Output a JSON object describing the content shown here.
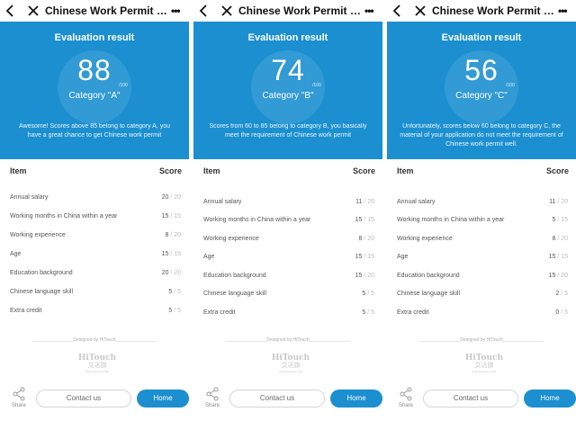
{
  "colors": {
    "accent": "#1b8fd0",
    "background": "#ffffff",
    "text": "#333333"
  },
  "panels": [
    {
      "topbar": {
        "title": "Chinese Work Permit Scor...",
        "back_icon": "chevron-left-icon",
        "close_icon": "close-icon",
        "more_icon": "more-dots-icon",
        "more_glyph": "•••"
      },
      "hero": {
        "title": "Evaluation result",
        "score": "88",
        "out_of": "/100",
        "category": "Category \"A\"",
        "message": "Awesome! Scores above 85 belong to category A, you have a great chance to get Chinese work permit"
      },
      "table": {
        "header_item": "Item",
        "header_score": "Score",
        "rows": [
          {
            "label": "Annual salary",
            "score": "20",
            "max": "/ 20"
          },
          {
            "label": "Working months in China within a year",
            "score": "15",
            "max": "/ 15"
          },
          {
            "label": "Working experience",
            "score": "8",
            "max": "/ 20"
          },
          {
            "label": "Age",
            "score": "15",
            "max": "/ 15"
          },
          {
            "label": "Education background",
            "score": "20",
            "max": "/ 20"
          },
          {
            "label": "Chinese language skill",
            "score": "5",
            "max": "/ 5"
          },
          {
            "label": "Extra credit",
            "score": "5",
            "max": "/ 5"
          }
        ]
      },
      "footer": {
        "designed_by": "Designed by HiTouch",
        "logo_main": "HiTouch",
        "logo_sub": "艾达旗",
        "logo_tiny": "High Business Club",
        "share": "Share",
        "contact": "Contact us",
        "home": "Home"
      }
    },
    {
      "topbar": {
        "title": "Chinese Work Permit Scor...",
        "back_icon": "chevron-left-icon",
        "close_icon": "close-icon",
        "more_icon": "more-dots-icon",
        "more_glyph": "•••"
      },
      "hero": {
        "title": "Evaluation result",
        "score": "74",
        "out_of": "/100",
        "category": "Category \"B\"",
        "message": "Scores from 60 to 85 belong to category B, you basically meet the requirement of Chinese work permit"
      },
      "table": {
        "header_item": "Item",
        "header_score": "Score",
        "rows": [
          {
            "label": "Annual salary",
            "score": "11",
            "max": "/ 20"
          },
          {
            "label": "Working months in China within a year",
            "score": "15",
            "max": "/ 15"
          },
          {
            "label": "Working experience",
            "score": "8",
            "max": "/ 20"
          },
          {
            "label": "Age",
            "score": "15",
            "max": "/ 15"
          },
          {
            "label": "Education background",
            "score": "15",
            "max": "/ 20"
          },
          {
            "label": "Chinese language skill",
            "score": "5",
            "max": "/ 5"
          },
          {
            "label": "Extra credit",
            "score": "5",
            "max": "/ 5"
          }
        ]
      },
      "footer": {
        "designed_by": "Designed by HiTouch",
        "logo_main": "HiTouch",
        "logo_sub": "艾达旗",
        "logo_tiny": "High Business Club",
        "share": "Share",
        "contact": "Contact us",
        "home": "Home"
      }
    },
    {
      "topbar": {
        "title": "Chinese Work Permit Scor...",
        "back_icon": "chevron-left-icon",
        "close_icon": "close-icon",
        "more_icon": "more-dots-icon",
        "more_glyph": "•••"
      },
      "hero": {
        "title": "Evaluation result",
        "score": "56",
        "out_of": "/100",
        "category": "Category \"C\"",
        "message": "Unfortunately, scores below 60 belong to category C, the material of your application do not meet the requirement of Chinese work permit well."
      },
      "table": {
        "header_item": "Item",
        "header_score": "Score",
        "rows": [
          {
            "label": "Annual salary",
            "score": "11",
            "max": "/ 20"
          },
          {
            "label": "Working months in China within a year",
            "score": "5",
            "max": "/ 15"
          },
          {
            "label": "Working experience",
            "score": "8",
            "max": "/ 20"
          },
          {
            "label": "Age",
            "score": "15",
            "max": "/ 15"
          },
          {
            "label": "Education background",
            "score": "15",
            "max": "/ 20"
          },
          {
            "label": "Chinese language skill",
            "score": "2",
            "max": "/ 5"
          },
          {
            "label": "Extra credit",
            "score": "0",
            "max": "/ 5"
          }
        ]
      },
      "footer": {
        "designed_by": "Designed by HiTouch",
        "logo_main": "HiTouch",
        "logo_sub": "艾达旗",
        "logo_tiny": "High Business Club",
        "share": "Share",
        "contact": "Contact us",
        "home": "Home"
      }
    }
  ]
}
